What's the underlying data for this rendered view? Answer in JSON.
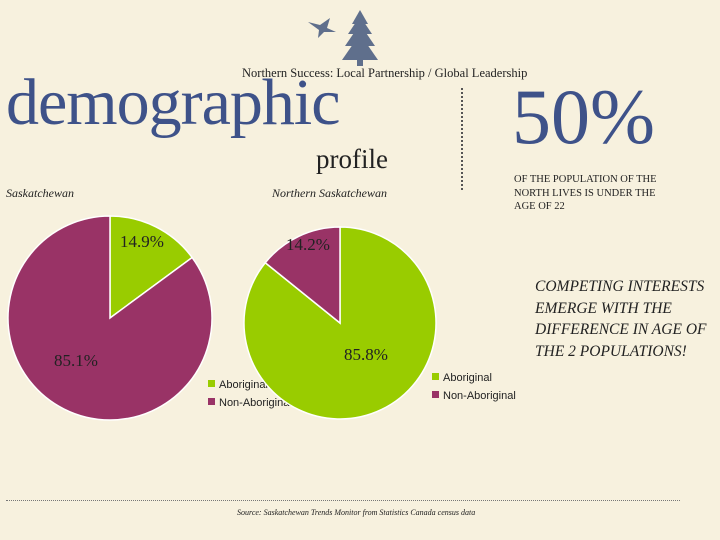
{
  "header": {
    "tagline": "Northern Success: Local Partnership / Global Leadership",
    "title": "demographic",
    "subtitle": "profile"
  },
  "stat": {
    "value": "50%",
    "description": "OF THE POPULATION OF THE NORTH LIVES IS UNDER THE AGE OF 22"
  },
  "note": "COMPETING INTERESTS EMERGE WITH THE DIFFERENCE IN AGE OF THE 2 POPULATIONS!",
  "source": "Source: Saskatchewan Trends Monitor from Statistics Canada census data",
  "colors": {
    "aboriginal": "#99cc00",
    "non_aboriginal": "#993366",
    "title": "#3e5289",
    "background": "#f7f1de"
  },
  "chart_data": [
    {
      "type": "pie",
      "title": "Saskatchewan",
      "categories": [
        "Aboriginal",
        "Non-Aboriginal"
      ],
      "values": [
        14.9,
        85.1
      ],
      "labels": [
        "14.9%",
        "85.1%"
      ],
      "legend": "bottom-right"
    },
    {
      "type": "pie",
      "title": "Northern Saskatchewan",
      "categories": [
        "Aboriginal",
        "Non-Aboriginal"
      ],
      "values": [
        85.8,
        14.2
      ],
      "labels": [
        "85.8%",
        "14.2%"
      ],
      "legend": "bottom-right"
    }
  ]
}
